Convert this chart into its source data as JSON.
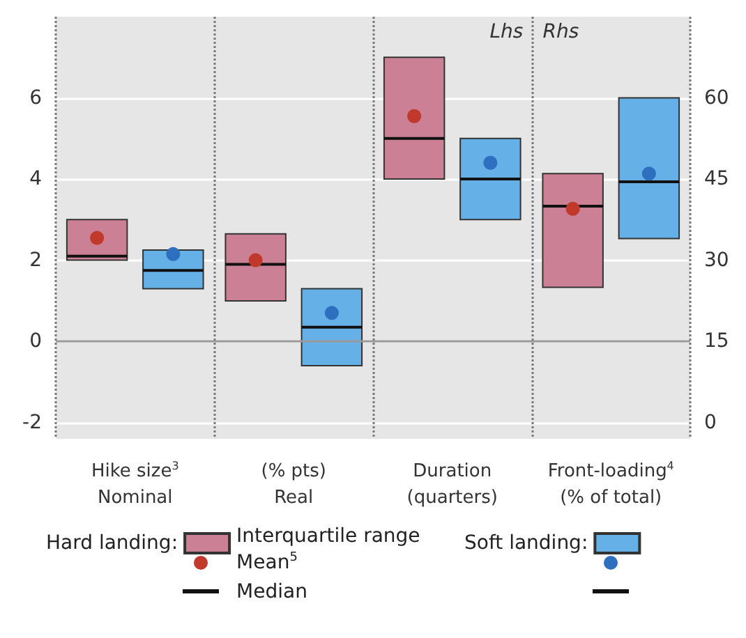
{
  "chart_data": {
    "type": "box",
    "categories": [
      "Hike size$^{3}$\nNominal",
      "(% pts)\nReal",
      "Duration\n(quarters)",
      "Front-loading$^{4}$\n(% of total)"
    ],
    "series": [
      {
        "name": "Hard landing:",
        "color": "#cc8095",
        "boxes": [
          {
            "low": 2.0,
            "q1": 2.0,
            "median": 2.1,
            "q3": 3.0,
            "high": 3.0
          },
          {
            "low": 1.0,
            "q1": 1.0,
            "median": 1.9,
            "q3": 2.65,
            "high": 2.65
          },
          {
            "low": 4.0,
            "q1": 4.0,
            "median": 5.0,
            "q3": 7.0,
            "high": 7.0
          },
          null
        ]
      },
      {
        "type": "scatter",
        "color": "#c0392b",
        "x": [
          "Hike size$^{3}$\nNominal",
          "(% pts)\nReal",
          "Duration\n(quarters)"
        ],
        "values": [
          2.55,
          2.0,
          5.55
        ]
      },
      {
        "name": "Soft landing:",
        "color": "#66b0e8",
        "boxes": [
          {
            "low": 1.3,
            "q1": 1.3,
            "median": 1.75,
            "q3": 2.25,
            "high": 2.25
          },
          {
            "low": -0.6,
            "q1": -0.6,
            "median": 0.35,
            "q3": 1.3,
            "high": 1.3
          },
          {
            "low": 3.0,
            "q1": 3.0,
            "median": 4.0,
            "q3": 5.0,
            "high": 5.0
          },
          null
        ]
      },
      {
        "type": "scatter",
        "color": "#2f6fbf",
        "x": [
          "Hike size$^{3}$\nNominal",
          "(% pts)\nReal",
          "Duration\n(quarters)"
        ],
        "values": [
          2.15,
          0.7,
          4.4
        ]
      },
      {
        "axis": "y2",
        "color": "#cc8095",
        "boxes": [
          null,
          null,
          null,
          {
            "low": 25,
            "q1": 25,
            "median": 40,
            "q3": 46,
            "high": 46
          }
        ]
      },
      {
        "type": "scatter",
        "axis": "y2",
        "color": "#c0392b",
        "x": [
          "Front-loading$^{4}$\n(% of total)"
        ],
        "values": [
          39.5
        ]
      },
      {
        "axis": "y2",
        "color": "#66b0e8",
        "boxes": [
          null,
          null,
          null,
          {
            "low": 34,
            "q1": 34,
            "median": 44.5,
            "q3": 60,
            "high": 60
          }
        ]
      },
      {
        "type": "scatter",
        "axis": "y2",
        "color": "#2f6fbf",
        "x": [
          "Front-loading$^{4}$\n(% of total)"
        ],
        "values": [
          46
        ]
      }
    ],
    "ylim": [
      -2.4,
      8
    ],
    "yticks": [
      -2,
      0,
      2,
      4,
      6
    ],
    "y2lim": [
      -3,
      75
    ],
    "y2ticks": [
      0,
      15,
      30,
      45,
      60
    ],
    "ref_lines": [
      {
        "axis": "y",
        "value": 0,
        "color": "#999999"
      }
    ],
    "annotations": [
      "Lhs",
      "Rhs",
      "Interquartile range",
      "Mean$^{5}$",
      "Median"
    ],
    "grid": "y",
    "legend": "bottom"
  }
}
